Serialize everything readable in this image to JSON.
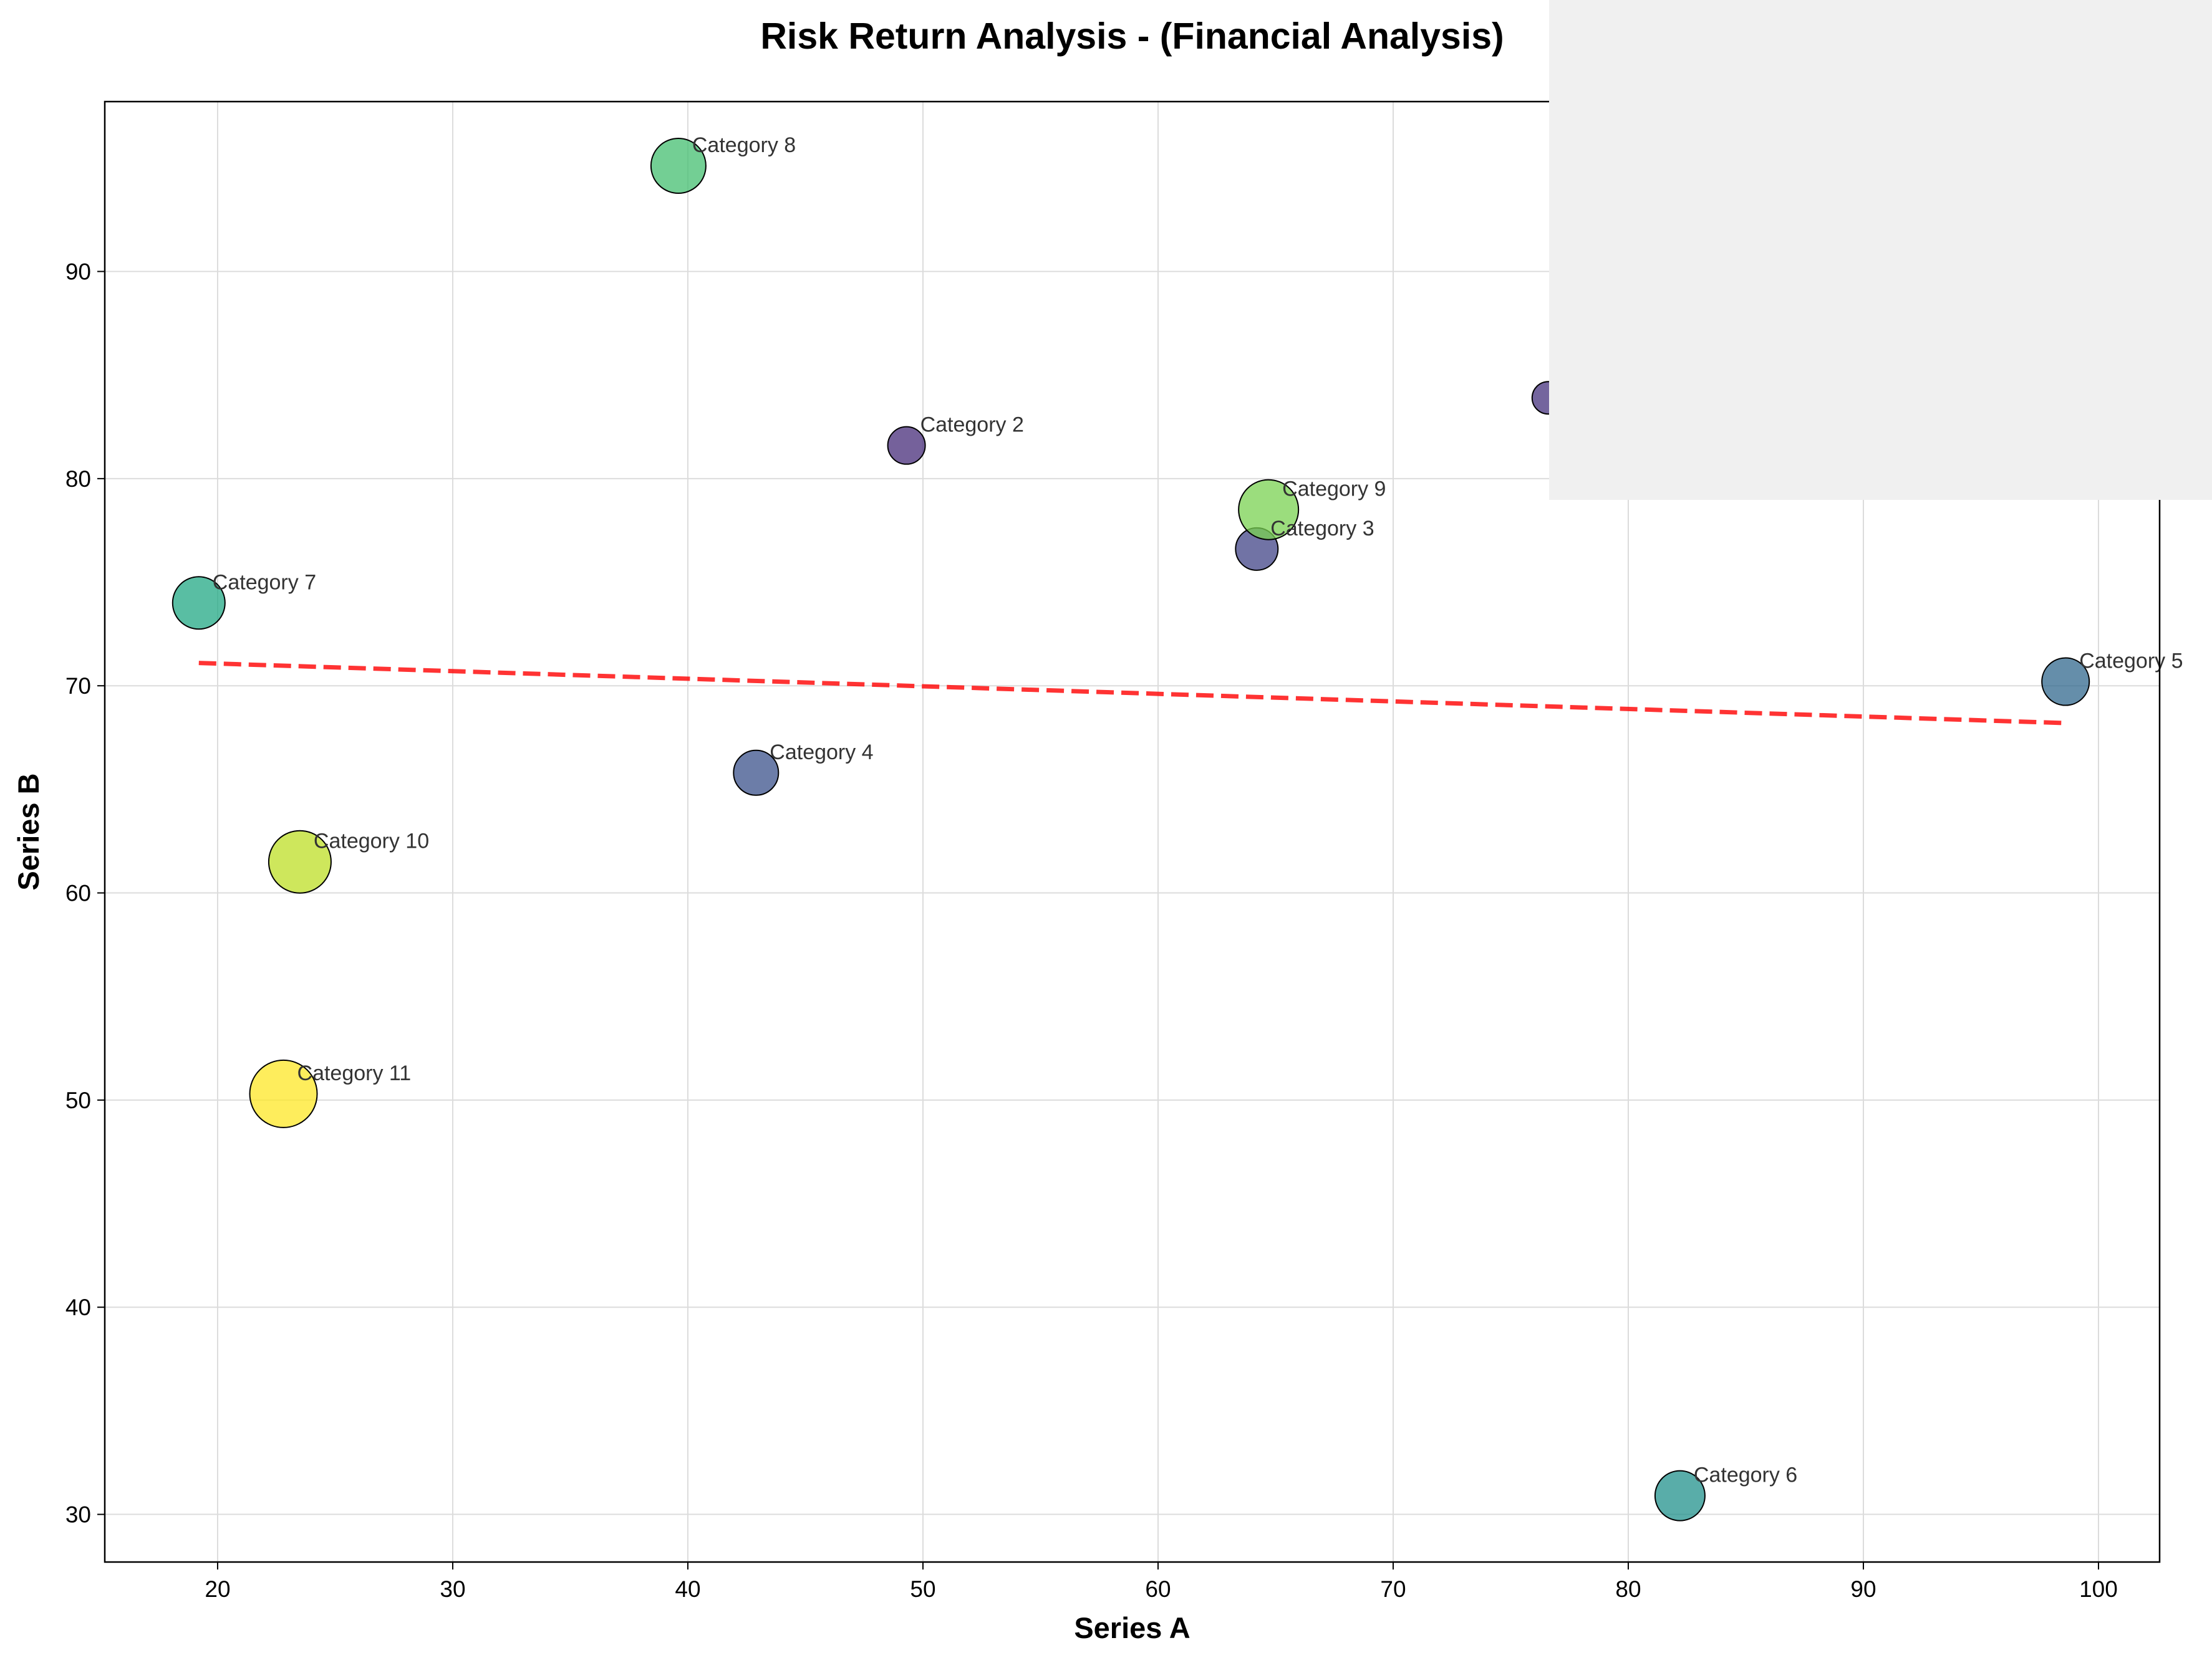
{
  "chart_data": {
    "type": "scatter",
    "title": "Risk Return Analysis - (Financial Analysis)",
    "xlabel": "Series A",
    "ylabel": "Series B",
    "xlim": [
      15.2,
      102.6
    ],
    "ylim": [
      27.7,
      98.2
    ],
    "xticks": [
      20,
      30,
      40,
      50,
      60,
      70,
      80,
      90,
      100
    ],
    "yticks": [
      30,
      40,
      50,
      60,
      70,
      80,
      90
    ],
    "grid": true,
    "points": [
      {
        "label": "",
        "x": 76.6,
        "y": 83.9,
        "size": 0.25,
        "color": "#46327e"
      },
      {
        "label": "Category 2",
        "x": 49.3,
        "y": 81.6,
        "size": 0.35,
        "color": "#472c7a"
      },
      {
        "label": "Category 3",
        "x": 64.2,
        "y": 76.6,
        "size": 0.45,
        "color": "#414487"
      },
      {
        "label": "Category 4",
        "x": 42.9,
        "y": 65.8,
        "size": 0.5,
        "color": "#3b528b"
      },
      {
        "label": "Category 5",
        "x": 98.6,
        "y": 70.2,
        "size": 0.55,
        "color": "#31688e"
      },
      {
        "label": "Category 6",
        "x": 82.2,
        "y": 30.9,
        "size": 0.6,
        "color": "#21918c"
      },
      {
        "label": "Category 7",
        "x": 19.2,
        "y": 74.0,
        "size": 0.65,
        "color": "#22a884"
      },
      {
        "label": "Category 8",
        "x": 39.6,
        "y": 95.1,
        "size": 0.7,
        "color": "#44bf70"
      },
      {
        "label": "Category 9",
        "x": 64.7,
        "y": 78.5,
        "size": 0.8,
        "color": "#7ad151"
      },
      {
        "label": "Category 10",
        "x": 23.5,
        "y": 61.5,
        "size": 0.85,
        "color": "#bddf26"
      },
      {
        "label": "Category 11",
        "x": 22.8,
        "y": 50.3,
        "size": 0.95,
        "color": "#fde725"
      }
    ],
    "trendline": {
      "x": [
        19.2,
        98.6
      ],
      "y": [
        71.1,
        68.2
      ],
      "color": "#ff0000",
      "style": "dashed"
    }
  }
}
